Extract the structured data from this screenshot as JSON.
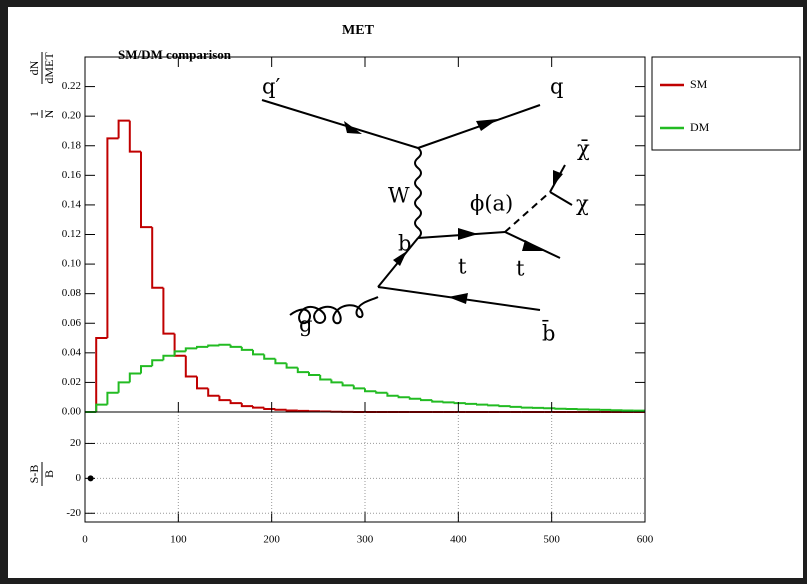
{
  "chart_data": [
    {
      "type": "histogram",
      "title": "MET",
      "subtitle": "SM/DM comparison",
      "ylabel_fractions": [
        [
          "1",
          "N"
        ],
        [
          "dN",
          "dMET"
        ]
      ],
      "bins": [
        0,
        12,
        24,
        36,
        48,
        60,
        72,
        84,
        96,
        108,
        120,
        132,
        144,
        156,
        168,
        180,
        192,
        204,
        216,
        228,
        240,
        252,
        264,
        276,
        288,
        300,
        312,
        324,
        336,
        348,
        360,
        372,
        384,
        396,
        408,
        420,
        432,
        444,
        456,
        468,
        480,
        492,
        504,
        516,
        528,
        540,
        552,
        564,
        576,
        588,
        600
      ],
      "series": [
        {
          "name": "SM",
          "color": "#c00000",
          "values": [
            0,
            0.05,
            0.185,
            0.197,
            0.176,
            0.125,
            0.084,
            0.053,
            0.038,
            0.024,
            0.016,
            0.011,
            0.008,
            0.006,
            0.004,
            0.003,
            0.002,
            0.0015,
            0.001,
            0.0008,
            0.0005,
            0.0003,
            0.0002,
            0.0001,
            0,
            0,
            0,
            0,
            0,
            0,
            0,
            0,
            0,
            0,
            0,
            0,
            0,
            0,
            0,
            0,
            0,
            0,
            0,
            0,
            0,
            0,
            0,
            0,
            0,
            0
          ]
        },
        {
          "name": "DM",
          "color": "#22bb22",
          "values": [
            0,
            0.005,
            0.013,
            0.02,
            0.026,
            0.031,
            0.035,
            0.038,
            0.041,
            0.043,
            0.044,
            0.045,
            0.0455,
            0.044,
            0.042,
            0.039,
            0.036,
            0.033,
            0.03,
            0.027,
            0.025,
            0.022,
            0.02,
            0.018,
            0.016,
            0.014,
            0.013,
            0.011,
            0.01,
            0.009,
            0.008,
            0.007,
            0.0065,
            0.006,
            0.0055,
            0.005,
            0.0045,
            0.004,
            0.0035,
            0.003,
            0.0028,
            0.0025,
            0.0022,
            0.002,
            0.0018,
            0.0016,
            0.0014,
            0.0012,
            0.001,
            0.0009
          ]
        }
      ],
      "xlim": [
        0,
        600
      ],
      "xticks": [
        0,
        100,
        200,
        300,
        400,
        500,
        600
      ],
      "ylim": [
        0,
        0.24
      ],
      "yticks": [
        {
          "value": 0,
          "label": "0.00"
        },
        {
          "value": 0.02,
          "label": "0.02"
        },
        {
          "value": 0.04,
          "label": "0.04"
        },
        {
          "value": 0.06,
          "label": "0.06"
        },
        {
          "value": 0.08,
          "label": "0.08"
        },
        {
          "value": 0.1,
          "label": "0.10"
        },
        {
          "value": 0.12,
          "label": "0.12"
        },
        {
          "value": 0.14,
          "label": "0.14"
        },
        {
          "value": 0.16,
          "label": "0.16"
        },
        {
          "value": 0.18,
          "label": "0.18"
        },
        {
          "value": 0.2,
          "label": "0.20"
        },
        {
          "value": 0.22,
          "label": "0.22"
        }
      ],
      "legend": "right",
      "annotations": [
        "q′",
        "q",
        "W",
        "b",
        "t",
        "t",
        "g",
        "b̄",
        "χ̄",
        "χ",
        "ϕ(a)"
      ]
    },
    {
      "type": "scatter",
      "ylabel_fraction": [
        "S-B",
        "B"
      ],
      "x": [
        6
      ],
      "values": [
        0
      ],
      "color": "#000000",
      "xlim": [
        0,
        600
      ],
      "xticks": [
        0,
        100,
        200,
        300,
        400,
        500,
        600
      ],
      "ylim": [
        -25,
        38
      ],
      "yticks": [
        -20,
        0,
        20
      ],
      "grid": true
    }
  ]
}
